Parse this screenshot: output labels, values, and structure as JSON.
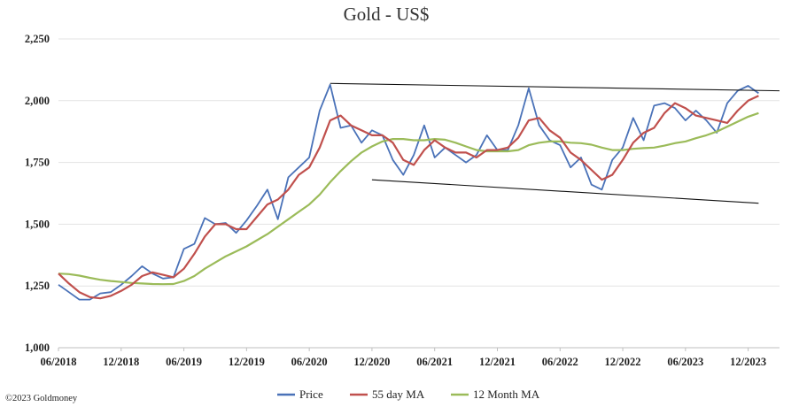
{
  "chart_data": {
    "type": "line",
    "title": "Gold - US$",
    "xlabel": "",
    "ylabel": "",
    "x_range": [
      "2018-06",
      "2024-03"
    ],
    "ylim": [
      1000,
      2250
    ],
    "y_ticks": [
      1000,
      1250,
      1500,
      1750,
      2000,
      2250
    ],
    "y_tick_labels": [
      "1,000",
      "1,250",
      "1,500",
      "1,750",
      "2,000",
      "2,250"
    ],
    "x_ticks": [
      "2018-06",
      "2018-12",
      "2019-06",
      "2019-12",
      "2020-06",
      "2020-12",
      "2021-06",
      "2021-12",
      "2022-06",
      "2022-12",
      "2023-06",
      "2023-12"
    ],
    "x_tick_labels": [
      "06/2018",
      "12/2018",
      "06/2019",
      "12/2019",
      "06/2020",
      "12/2020",
      "06/2021",
      "12/2021",
      "06/2022",
      "12/2022",
      "06/2023",
      "12/2023"
    ],
    "grid": "horizontal",
    "legend_position": "bottom",
    "series": [
      {
        "name": "Price",
        "color": "#4a72b8",
        "points": [
          [
            "2018-06",
            1255
          ],
          [
            "2018-07",
            1225
          ],
          [
            "2018-08",
            1195
          ],
          [
            "2018-09",
            1195
          ],
          [
            "2018-10",
            1220
          ],
          [
            "2018-11",
            1225
          ],
          [
            "2018-12",
            1255
          ],
          [
            "2019-01",
            1290
          ],
          [
            "2019-02",
            1330
          ],
          [
            "2019-03",
            1300
          ],
          [
            "2019-04",
            1280
          ],
          [
            "2019-05",
            1285
          ],
          [
            "2019-06",
            1400
          ],
          [
            "2019-07",
            1420
          ],
          [
            "2019-08",
            1525
          ],
          [
            "2019-09",
            1500
          ],
          [
            "2019-10",
            1505
          ],
          [
            "2019-11",
            1465
          ],
          [
            "2019-12",
            1515
          ],
          [
            "2020-01",
            1575
          ],
          [
            "2020-02",
            1640
          ],
          [
            "2020-03",
            1520
          ],
          [
            "2020-04",
            1690
          ],
          [
            "2020-05",
            1730
          ],
          [
            "2020-06",
            1770
          ],
          [
            "2020-07",
            1960
          ],
          [
            "2020-08",
            2065
          ],
          [
            "2020-09",
            1890
          ],
          [
            "2020-10",
            1900
          ],
          [
            "2020-11",
            1830
          ],
          [
            "2020-12",
            1880
          ],
          [
            "2021-01",
            1860
          ],
          [
            "2021-02",
            1760
          ],
          [
            "2021-03",
            1700
          ],
          [
            "2021-04",
            1780
          ],
          [
            "2021-05",
            1900
          ],
          [
            "2021-06",
            1770
          ],
          [
            "2021-07",
            1810
          ],
          [
            "2021-08",
            1780
          ],
          [
            "2021-09",
            1750
          ],
          [
            "2021-10",
            1780
          ],
          [
            "2021-11",
            1860
          ],
          [
            "2021-12",
            1800
          ],
          [
            "2022-01",
            1800
          ],
          [
            "2022-02",
            1900
          ],
          [
            "2022-03",
            2050
          ],
          [
            "2022-04",
            1900
          ],
          [
            "2022-05",
            1840
          ],
          [
            "2022-06",
            1820
          ],
          [
            "2022-07",
            1730
          ],
          [
            "2022-08",
            1770
          ],
          [
            "2022-09",
            1660
          ],
          [
            "2022-10",
            1640
          ],
          [
            "2022-11",
            1760
          ],
          [
            "2022-12",
            1810
          ],
          [
            "2023-01",
            1930
          ],
          [
            "2023-02",
            1840
          ],
          [
            "2023-03",
            1980
          ],
          [
            "2023-04",
            1990
          ],
          [
            "2023-05",
            1970
          ],
          [
            "2023-06",
            1920
          ],
          [
            "2023-07",
            1960
          ],
          [
            "2023-08",
            1920
          ],
          [
            "2023-09",
            1870
          ],
          [
            "2023-10",
            1990
          ],
          [
            "2023-11",
            2040
          ],
          [
            "2023-12",
            2060
          ],
          [
            "2024-01",
            2030
          ]
        ]
      },
      {
        "name": "55 day MA",
        "color": "#c0504d",
        "points": [
          [
            "2018-06",
            1300
          ],
          [
            "2018-07",
            1260
          ],
          [
            "2018-08",
            1225
          ],
          [
            "2018-09",
            1205
          ],
          [
            "2018-10",
            1200
          ],
          [
            "2018-11",
            1210
          ],
          [
            "2018-12",
            1230
          ],
          [
            "2019-01",
            1255
          ],
          [
            "2019-02",
            1290
          ],
          [
            "2019-03",
            1305
          ],
          [
            "2019-04",
            1295
          ],
          [
            "2019-05",
            1285
          ],
          [
            "2019-06",
            1320
          ],
          [
            "2019-07",
            1380
          ],
          [
            "2019-08",
            1450
          ],
          [
            "2019-09",
            1500
          ],
          [
            "2019-10",
            1500
          ],
          [
            "2019-11",
            1480
          ],
          [
            "2019-12",
            1480
          ],
          [
            "2020-01",
            1530
          ],
          [
            "2020-02",
            1580
          ],
          [
            "2020-03",
            1600
          ],
          [
            "2020-04",
            1640
          ],
          [
            "2020-05",
            1700
          ],
          [
            "2020-06",
            1730
          ],
          [
            "2020-07",
            1810
          ],
          [
            "2020-08",
            1920
          ],
          [
            "2020-09",
            1940
          ],
          [
            "2020-10",
            1900
          ],
          [
            "2020-11",
            1880
          ],
          [
            "2020-12",
            1860
          ],
          [
            "2021-01",
            1860
          ],
          [
            "2021-02",
            1830
          ],
          [
            "2021-03",
            1760
          ],
          [
            "2021-04",
            1740
          ],
          [
            "2021-05",
            1800
          ],
          [
            "2021-06",
            1840
          ],
          [
            "2021-07",
            1810
          ],
          [
            "2021-08",
            1790
          ],
          [
            "2021-09",
            1790
          ],
          [
            "2021-10",
            1770
          ],
          [
            "2021-11",
            1800
          ],
          [
            "2021-12",
            1800
          ],
          [
            "2022-01",
            1810
          ],
          [
            "2022-02",
            1850
          ],
          [
            "2022-03",
            1920
          ],
          [
            "2022-04",
            1930
          ],
          [
            "2022-05",
            1880
          ],
          [
            "2022-06",
            1850
          ],
          [
            "2022-07",
            1790
          ],
          [
            "2022-08",
            1760
          ],
          [
            "2022-09",
            1720
          ],
          [
            "2022-10",
            1680
          ],
          [
            "2022-11",
            1700
          ],
          [
            "2022-12",
            1760
          ],
          [
            "2023-01",
            1830
          ],
          [
            "2023-02",
            1870
          ],
          [
            "2023-03",
            1890
          ],
          [
            "2023-04",
            1950
          ],
          [
            "2023-05",
            1990
          ],
          [
            "2023-06",
            1970
          ],
          [
            "2023-07",
            1940
          ],
          [
            "2023-08",
            1930
          ],
          [
            "2023-09",
            1920
          ],
          [
            "2023-10",
            1910
          ],
          [
            "2023-11",
            1960
          ],
          [
            "2023-12",
            2000
          ],
          [
            "2024-01",
            2020
          ]
        ]
      },
      {
        "name": "12 Month MA",
        "color": "#9bbb59",
        "points": [
          [
            "2018-06",
            1300
          ],
          [
            "2018-07",
            1298
          ],
          [
            "2018-08",
            1292
          ],
          [
            "2018-09",
            1283
          ],
          [
            "2018-10",
            1275
          ],
          [
            "2018-11",
            1270
          ],
          [
            "2018-12",
            1266
          ],
          [
            "2019-01",
            1262
          ],
          [
            "2019-02",
            1260
          ],
          [
            "2019-03",
            1258
          ],
          [
            "2019-04",
            1257
          ],
          [
            "2019-05",
            1258
          ],
          [
            "2019-06",
            1270
          ],
          [
            "2019-07",
            1290
          ],
          [
            "2019-08",
            1320
          ],
          [
            "2019-09",
            1345
          ],
          [
            "2019-10",
            1370
          ],
          [
            "2019-11",
            1390
          ],
          [
            "2019-12",
            1410
          ],
          [
            "2020-01",
            1435
          ],
          [
            "2020-02",
            1460
          ],
          [
            "2020-03",
            1490
          ],
          [
            "2020-04",
            1520
          ],
          [
            "2020-05",
            1550
          ],
          [
            "2020-06",
            1580
          ],
          [
            "2020-07",
            1620
          ],
          [
            "2020-08",
            1670
          ],
          [
            "2020-09",
            1715
          ],
          [
            "2020-10",
            1755
          ],
          [
            "2020-11",
            1790
          ],
          [
            "2020-12",
            1815
          ],
          [
            "2021-01",
            1835
          ],
          [
            "2021-02",
            1845
          ],
          [
            "2021-03",
            1845
          ],
          [
            "2021-04",
            1840
          ],
          [
            "2021-05",
            1840
          ],
          [
            "2021-06",
            1845
          ],
          [
            "2021-07",
            1842
          ],
          [
            "2021-08",
            1830
          ],
          [
            "2021-09",
            1815
          ],
          [
            "2021-10",
            1800
          ],
          [
            "2021-11",
            1795
          ],
          [
            "2021-12",
            1795
          ],
          [
            "2022-01",
            1795
          ],
          [
            "2022-02",
            1800
          ],
          [
            "2022-03",
            1820
          ],
          [
            "2022-04",
            1830
          ],
          [
            "2022-05",
            1835
          ],
          [
            "2022-06",
            1835
          ],
          [
            "2022-07",
            1830
          ],
          [
            "2022-08",
            1828
          ],
          [
            "2022-09",
            1822
          ],
          [
            "2022-10",
            1810
          ],
          [
            "2022-11",
            1800
          ],
          [
            "2022-12",
            1800
          ],
          [
            "2023-01",
            1805
          ],
          [
            "2023-02",
            1808
          ],
          [
            "2023-03",
            1810
          ],
          [
            "2023-04",
            1818
          ],
          [
            "2023-05",
            1828
          ],
          [
            "2023-06",
            1835
          ],
          [
            "2023-07",
            1848
          ],
          [
            "2023-08",
            1860
          ],
          [
            "2023-09",
            1875
          ],
          [
            "2023-10",
            1895
          ],
          [
            "2023-11",
            1915
          ],
          [
            "2023-12",
            1935
          ],
          [
            "2024-01",
            1950
          ]
        ]
      }
    ],
    "trend_lines": [
      {
        "color": "#111111",
        "points": [
          [
            "2020-08",
            2070
          ],
          [
            "2024-03",
            2040
          ]
        ]
      },
      {
        "color": "#111111",
        "points": [
          [
            "2020-12",
            1680
          ],
          [
            "2024-01",
            1585
          ]
        ]
      }
    ]
  },
  "footer": {
    "copyright": "©2023 Goldmoney"
  }
}
